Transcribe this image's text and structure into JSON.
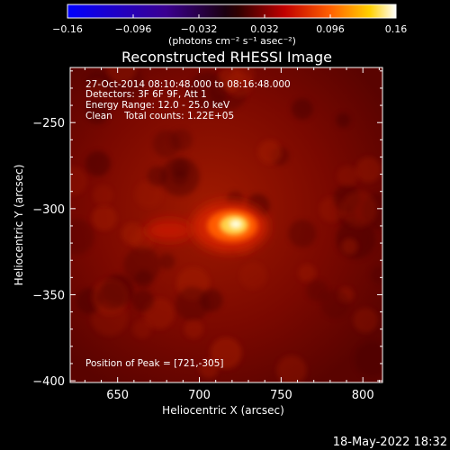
{
  "colorbar": {
    "tick_labels": [
      "−0.16",
      "−0.096",
      "−0.032",
      "0.032",
      "0.096",
      "0.16"
    ],
    "unit_label": "(photons cm⁻² s⁻¹ asec⁻²)"
  },
  "title": "Reconstructed RHESSI Image",
  "info": {
    "line1": "27-Oct-2014 08:10:48.000 to 08:16:48.000",
    "line2": "Detectors: 3F 6F 9F, Att 1",
    "line3": "Energy Range: 12.0 - 25.0 keV",
    "line4": "Clean    Total counts: 1.22E+05",
    "peak": "Position of Peak = [721,-305]"
  },
  "footer": {
    "timestamp": "18-May-2022 18:32"
  },
  "chart_data": {
    "type": "heatmap",
    "title": "Reconstructed RHESSI Image",
    "xlabel": "Heliocentric X (arcsec)",
    "ylabel": "Heliocentric Y (arcsec)",
    "xlim": [
      621,
      812
    ],
    "ylim": [
      -401,
      -218
    ],
    "x_ticks": [
      650,
      700,
      750,
      800
    ],
    "x_tick_labels": [
      "650",
      "700",
      "750",
      "800"
    ],
    "y_ticks": [
      -250,
      -300,
      -350,
      -400
    ],
    "y_tick_labels": [
      "−250",
      "−300",
      "−350",
      "−400"
    ],
    "colorscale_range": [
      -0.16,
      0.16
    ],
    "colormap": "red-temperature",
    "peak": {
      "x": 721,
      "y": -305
    },
    "sources": [
      {
        "x": 721,
        "y": -305,
        "rel_intensity": 1.0
      },
      {
        "x": 683,
        "y": -307,
        "rel_intensity": 0.35
      }
    ]
  }
}
